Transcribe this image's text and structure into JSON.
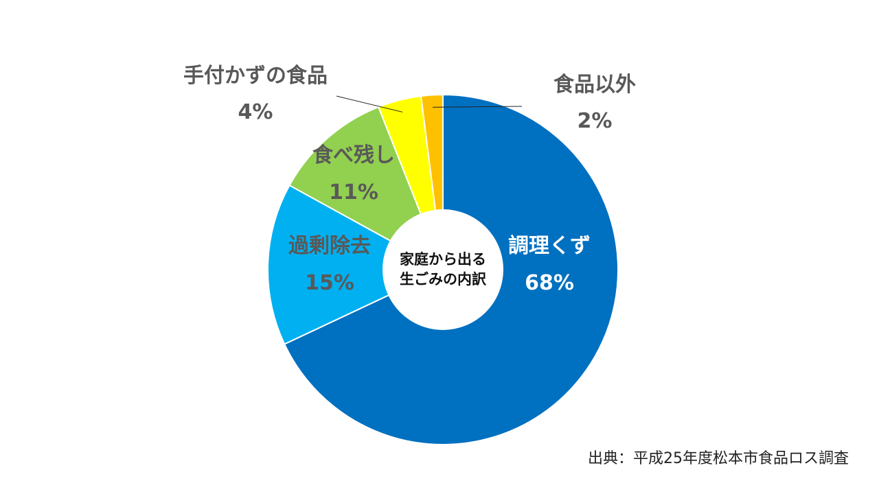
{
  "chart_data": {
    "type": "pie",
    "center_label": [
      "家庭から出る",
      "生ごみの内訳"
    ],
    "categories": [
      "調理くず",
      "過剰除去",
      "食べ残し",
      "手付かずの食品",
      "食品以外"
    ],
    "values": [
      68,
      15,
      11,
      4,
      2
    ],
    "value_labels": [
      "68%",
      "15%",
      "11%",
      "4%",
      "2%"
    ],
    "colors": [
      "#0070c0",
      "#00b0f0",
      "#92d050",
      "#ffff00",
      "#ffc000"
    ],
    "label_colors": [
      "#ffffff",
      "#595959",
      "#595959",
      "#595959",
      "#595959"
    ],
    "legend": "none"
  },
  "source_note": "出典：平成25年度松本市食品ロス調査"
}
